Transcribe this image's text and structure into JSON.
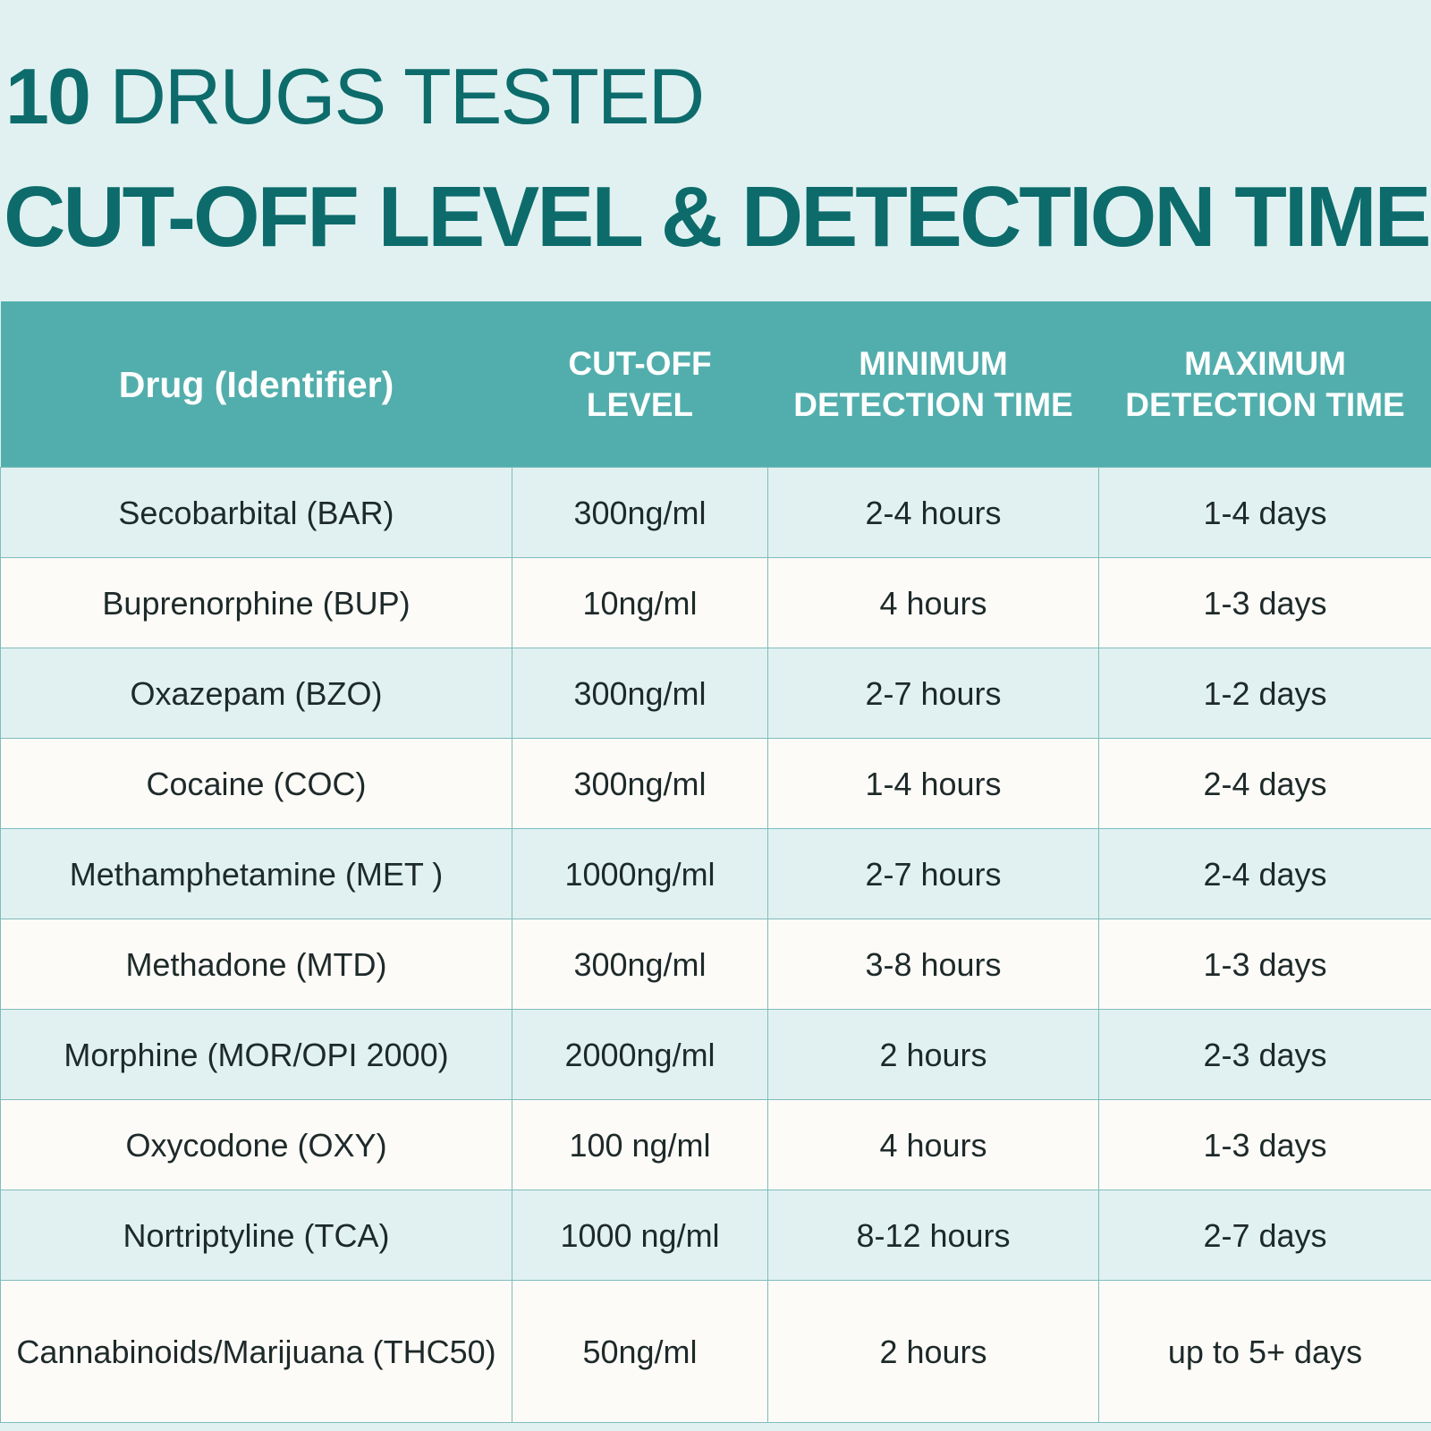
{
  "title": {
    "count": "10",
    "line1_rest": "DRUGS TESTED",
    "line2": "CUT-OFF LEVEL & DETECTION TIME"
  },
  "table": {
    "headers": [
      "Drug (Identifier)",
      "CUT-OFF LEVEL",
      "MINIMUM DETECTION TIME",
      "MAXIMUM DETECTION TIME"
    ],
    "rows": [
      [
        "Secobarbital (BAR)",
        "300ng/ml",
        "2-4 hours",
        "1-4 days"
      ],
      [
        "Buprenorphine (BUP)",
        "10ng/ml",
        "4 hours",
        "1-3 days"
      ],
      [
        "Oxazepam (BZO)",
        "300ng/ml",
        "2-7 hours",
        "1-2 days"
      ],
      [
        "Cocaine (COC)",
        "300ng/ml",
        "1-4 hours",
        "2-4 days"
      ],
      [
        "Methamphetamine (MET )",
        "1000ng/ml",
        "2-7 hours",
        "2-4 days"
      ],
      [
        "Methadone (MTD)",
        "300ng/ml",
        "3-8 hours",
        "1-3 days"
      ],
      [
        "Morphine (MOR/OPI 2000)",
        "2000ng/ml",
        "2 hours",
        "2-3 days"
      ],
      [
        "Oxycodone (OXY)",
        "100 ng/ml",
        "4 hours",
        "1-3 days"
      ],
      [
        "Nortriptyline (TCA)",
        "1000 ng/ml",
        "8-12 hours",
        "2-7 days"
      ],
      [
        "Cannabinoids/Marijuana (THC50)",
        "50ng/ml",
        "2 hours",
        "up to 5+ days"
      ]
    ]
  },
  "colors": {
    "background": "#e1f1f1",
    "title": "#0d6b6b",
    "header_bg": "#52aeac",
    "row_alt": "#fdfbf8",
    "grid": "#7fbcbc"
  }
}
